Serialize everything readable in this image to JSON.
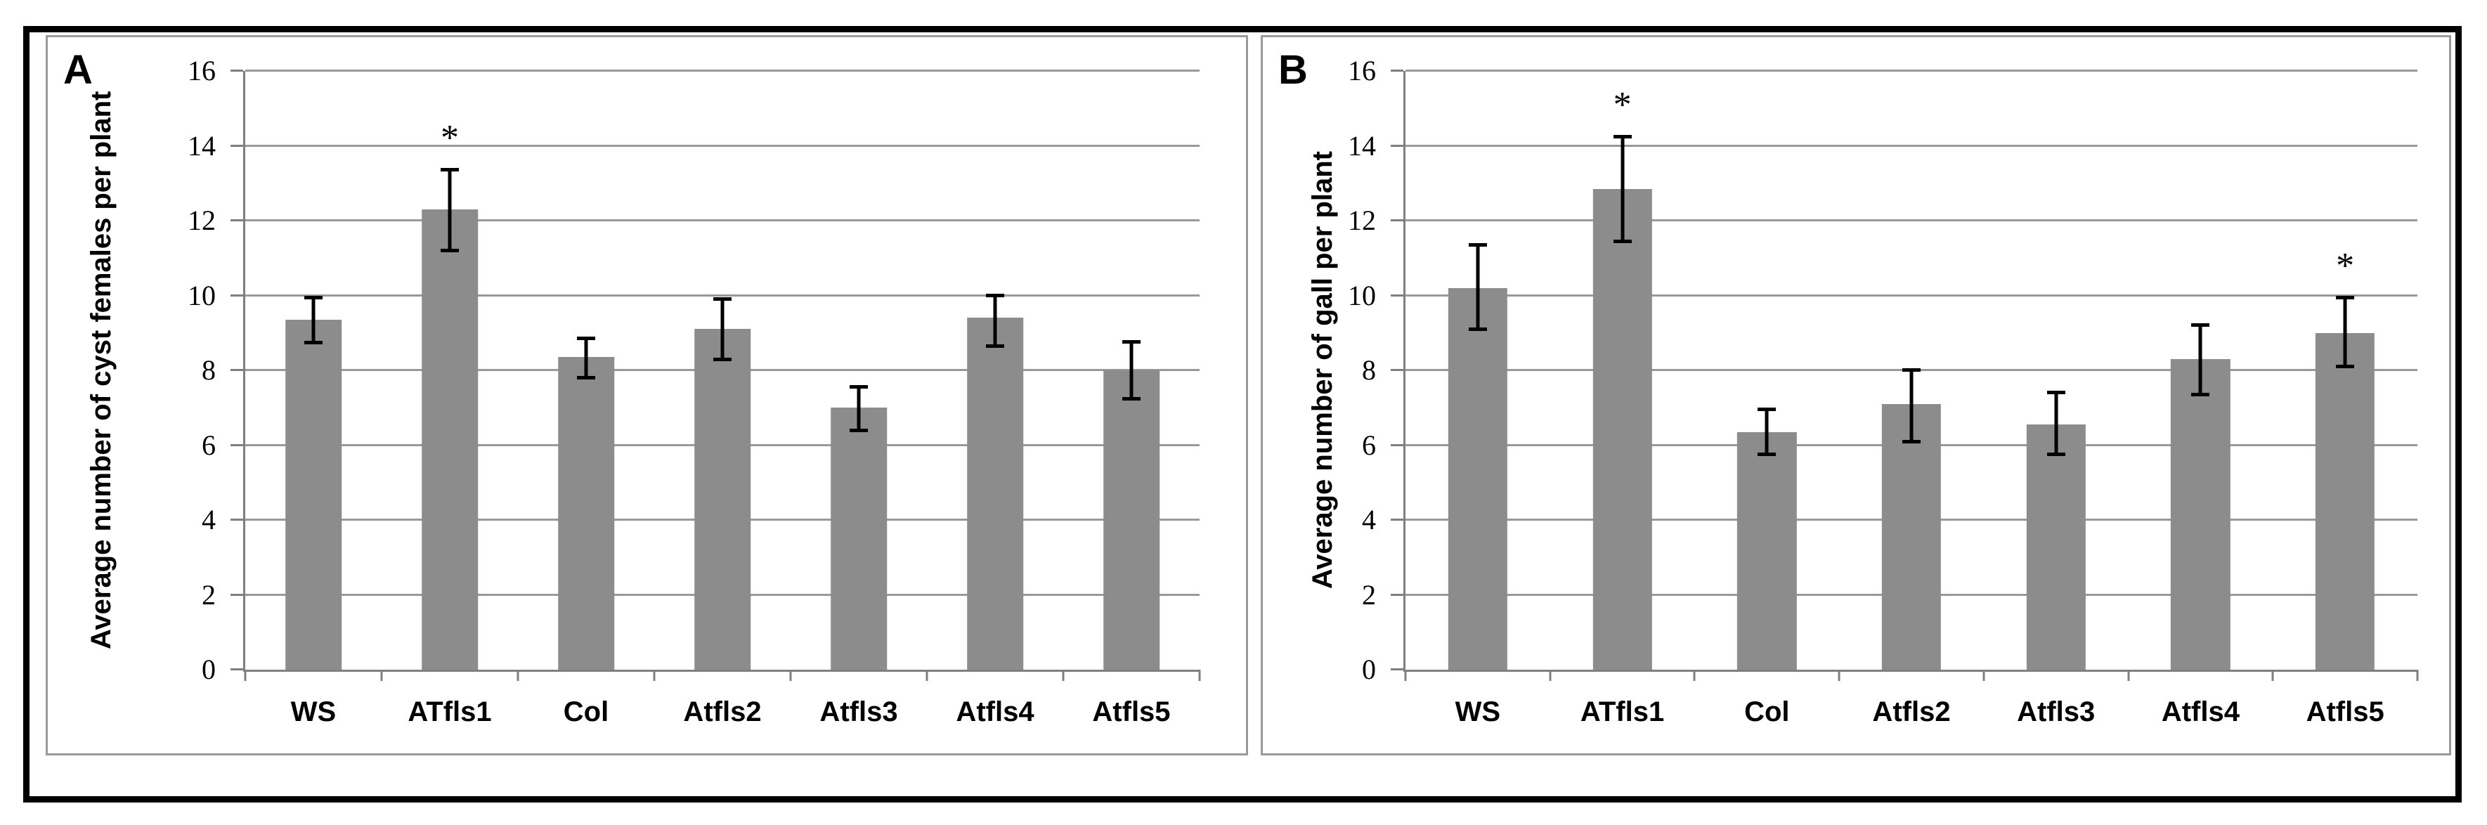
{
  "figure": {
    "background": "#ffffff",
    "frame_color": "#000000",
    "panel_border_color": "#9a9a9a"
  },
  "chart_data": [
    {
      "type": "bar",
      "panel_label": "A",
      "title": "",
      "xlabel": "",
      "ylabel": "Average number of cyst females per plant",
      "categories": [
        "WS",
        "ATfls1",
        "Col",
        "Atfls2",
        "Atfls3",
        "Atfls4",
        "Atfls5"
      ],
      "values": [
        9.35,
        12.3,
        8.35,
        9.1,
        7.0,
        9.4,
        8.0
      ],
      "error_top": [
        10.0,
        13.4,
        8.9,
        9.95,
        7.6,
        10.05,
        8.8
      ],
      "error_bottom": [
        8.7,
        11.15,
        7.75,
        8.25,
        6.35,
        8.6,
        7.2
      ],
      "significance": [
        "",
        "*",
        "",
        "",
        "",
        "",
        ""
      ],
      "ylim": [
        0,
        16
      ],
      "yticks": [
        0,
        2,
        4,
        6,
        8,
        10,
        12,
        14,
        16
      ],
      "grid": true,
      "legend": "none",
      "bar_color": "#8c8c8c",
      "gridline_color": "#999999",
      "axis_color": "#7f7f7f",
      "error_color": "#000000"
    },
    {
      "type": "bar",
      "panel_label": "B",
      "title": "",
      "xlabel": "",
      "ylabel": "Average number of gall per plant",
      "categories": [
        "WS",
        "ATfls1",
        "Col",
        "Atfls2",
        "Atfls3",
        "Atfls4",
        "Atfls5"
      ],
      "values": [
        10.2,
        12.85,
        6.35,
        7.1,
        6.55,
        8.3,
        9.0
      ],
      "error_top": [
        11.4,
        14.3,
        7.0,
        8.05,
        7.45,
        9.25,
        10.0
      ],
      "error_bottom": [
        9.05,
        11.4,
        5.7,
        6.05,
        5.7,
        7.3,
        8.05
      ],
      "significance": [
        "",
        "*",
        "",
        "",
        "",
        "",
        "*"
      ],
      "ylim": [
        0,
        16
      ],
      "yticks": [
        0,
        2,
        4,
        6,
        8,
        10,
        12,
        14,
        16
      ],
      "grid": true,
      "legend": "none",
      "bar_color": "#8c8c8c",
      "gridline_color": "#999999",
      "axis_color": "#7f7f7f",
      "error_color": "#000000"
    }
  ]
}
